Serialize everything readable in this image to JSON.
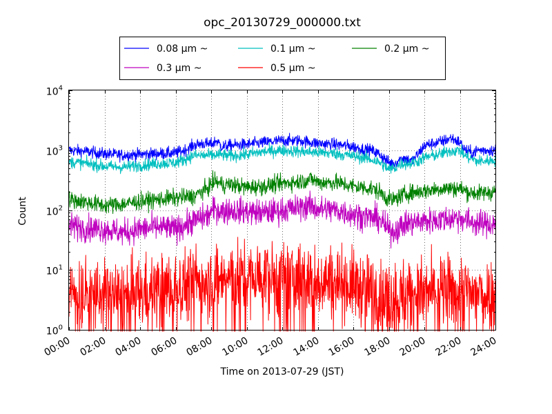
{
  "chart_data": {
    "type": "line",
    "title": "opc_20130729_000000.txt",
    "xlabel": "Time on 2013-07-29 (JST)",
    "ylabel": "Count",
    "y_scale": "log",
    "ylim": [
      1,
      10000
    ],
    "xlim_hours": [
      0,
      24
    ],
    "x_ticks": [
      "00:00",
      "02:00",
      "04:00",
      "06:00",
      "08:00",
      "10:00",
      "12:00",
      "14:00",
      "16:00",
      "18:00",
      "20:00",
      "22:00",
      "24:00"
    ],
    "y_ticks": [
      {
        "value": 1,
        "base": "10",
        "exp": "0"
      },
      {
        "value": 10,
        "base": "10",
        "exp": "1"
      },
      {
        "value": 100,
        "base": "10",
        "exp": "2"
      },
      {
        "value": 1000,
        "base": "10",
        "exp": "3"
      },
      {
        "value": 10000,
        "base": "10",
        "exp": "4"
      }
    ],
    "grid": true,
    "legend_position": "top (above plot), 3 columns",
    "series": [
      {
        "name": "0.08 μm ~",
        "color": "#0000ff",
        "noise": 0.05,
        "points": [
          [
            0,
            1000
          ],
          [
            1,
            950
          ],
          [
            2,
            870
          ],
          [
            3,
            830
          ],
          [
            4,
            850
          ],
          [
            5,
            880
          ],
          [
            6,
            900
          ],
          [
            6.5,
            1000
          ],
          [
            7,
            1200
          ],
          [
            7.5,
            1300
          ],
          [
            8,
            1250
          ],
          [
            8.3,
            1450
          ],
          [
            8.6,
            1150
          ],
          [
            9,
            1200
          ],
          [
            10,
            1250
          ],
          [
            11,
            1350
          ],
          [
            12,
            1450
          ],
          [
            13,
            1450
          ],
          [
            13.7,
            1350
          ],
          [
            14,
            1300
          ],
          [
            15,
            1250
          ],
          [
            16,
            1150
          ],
          [
            16.5,
            1050
          ],
          [
            17,
            1000
          ],
          [
            17.5,
            850
          ],
          [
            18,
            620
          ],
          [
            18.3,
            600
          ],
          [
            18.8,
            750
          ],
          [
            19.3,
            650
          ],
          [
            19.7,
            900
          ],
          [
            20,
            1200
          ],
          [
            20.5,
            1300
          ],
          [
            21,
            1400
          ],
          [
            21.5,
            1600
          ],
          [
            22,
            1350
          ],
          [
            22.3,
            1000
          ],
          [
            22.7,
            900
          ],
          [
            23,
            1000
          ],
          [
            24,
            1000
          ]
        ]
      },
      {
        "name": "0.1 μm ~",
        "color": "#00bfbf",
        "noise": 0.05,
        "points": [
          [
            0,
            640
          ],
          [
            1,
            600
          ],
          [
            2,
            540
          ],
          [
            3,
            520
          ],
          [
            4,
            560
          ],
          [
            5,
            600
          ],
          [
            6,
            620
          ],
          [
            6.5,
            700
          ],
          [
            7,
            820
          ],
          [
            7.5,
            820
          ],
          [
            8,
            820
          ],
          [
            8.5,
            850
          ],
          [
            9,
            800
          ],
          [
            10,
            850
          ],
          [
            11,
            950
          ],
          [
            12,
            1000
          ],
          [
            13,
            950
          ],
          [
            14,
            920
          ],
          [
            15,
            880
          ],
          [
            16,
            800
          ],
          [
            16.5,
            760
          ],
          [
            17,
            700
          ],
          [
            17.5,
            620
          ],
          [
            18,
            480
          ],
          [
            18.3,
            500
          ],
          [
            18.7,
            600
          ],
          [
            19.2,
            600
          ],
          [
            19.6,
            650
          ],
          [
            20,
            750
          ],
          [
            21,
            880
          ],
          [
            21.5,
            980
          ],
          [
            22,
            1000
          ],
          [
            22.3,
            800
          ],
          [
            23,
            650
          ],
          [
            24,
            680
          ]
        ]
      },
      {
        "name": "0.2 μm ~",
        "color": "#008000",
        "noise": 0.07,
        "points": [
          [
            0,
            150
          ],
          [
            1,
            135
          ],
          [
            2,
            120
          ],
          [
            3,
            125
          ],
          [
            4,
            140
          ],
          [
            5,
            150
          ],
          [
            6,
            160
          ],
          [
            7,
            170
          ],
          [
            7.8,
            230
          ],
          [
            8.2,
            310
          ],
          [
            8.7,
            260
          ],
          [
            9,
            270
          ],
          [
            10,
            240
          ],
          [
            11,
            250
          ],
          [
            12,
            280
          ],
          [
            13,
            300
          ],
          [
            13.7,
            330
          ],
          [
            14,
            290
          ],
          [
            15,
            290
          ],
          [
            16,
            250
          ],
          [
            17,
            230
          ],
          [
            17.5,
            200
          ],
          [
            18,
            150
          ],
          [
            18.3,
            150
          ],
          [
            19,
            190
          ],
          [
            20,
            210
          ],
          [
            21,
            230
          ],
          [
            22,
            230
          ],
          [
            22.5,
            200
          ],
          [
            23,
            190
          ],
          [
            24,
            205
          ]
        ]
      },
      {
        "name": "0.3 μm ~",
        "color": "#bf00bf",
        "noise": 0.11,
        "points": [
          [
            0,
            55
          ],
          [
            1,
            50
          ],
          [
            2,
            48
          ],
          [
            3,
            42
          ],
          [
            4,
            48
          ],
          [
            5,
            52
          ],
          [
            6,
            48
          ],
          [
            7,
            65
          ],
          [
            7.8,
            80
          ],
          [
            8.2,
            105
          ],
          [
            8.7,
            95
          ],
          [
            9,
            100
          ],
          [
            10,
            95
          ],
          [
            11,
            90
          ],
          [
            12,
            100
          ],
          [
            13,
            110
          ],
          [
            13.5,
            120
          ],
          [
            14,
            105
          ],
          [
            15,
            100
          ],
          [
            16,
            85
          ],
          [
            17,
            75
          ],
          [
            17.5,
            70
          ],
          [
            18,
            45
          ],
          [
            18.3,
            45
          ],
          [
            19,
            60
          ],
          [
            20,
            65
          ],
          [
            21,
            70
          ],
          [
            22,
            75
          ],
          [
            22.5,
            65
          ],
          [
            23,
            60
          ],
          [
            24,
            58
          ]
        ]
      },
      {
        "name": "0.5 μm ~",
        "color": "#ff0000",
        "noise": 0.3,
        "floor": 1,
        "points": [
          [
            0,
            4
          ],
          [
            2,
            4
          ],
          [
            3,
            3.5
          ],
          [
            4,
            4
          ],
          [
            5,
            5
          ],
          [
            6,
            5
          ],
          [
            7,
            6.5
          ],
          [
            8,
            7
          ],
          [
            9,
            7.5
          ],
          [
            10,
            7
          ],
          [
            11,
            7.5
          ],
          [
            12,
            7
          ],
          [
            13,
            7.5
          ],
          [
            14,
            7
          ],
          [
            15,
            6.5
          ],
          [
            16,
            5.5
          ],
          [
            17,
            4.5
          ],
          [
            18,
            3.5
          ],
          [
            19,
            4
          ],
          [
            20,
            4
          ],
          [
            21,
            4.5
          ],
          [
            22,
            4.5
          ],
          [
            23,
            4
          ],
          [
            24,
            4
          ]
        ]
      }
    ]
  }
}
